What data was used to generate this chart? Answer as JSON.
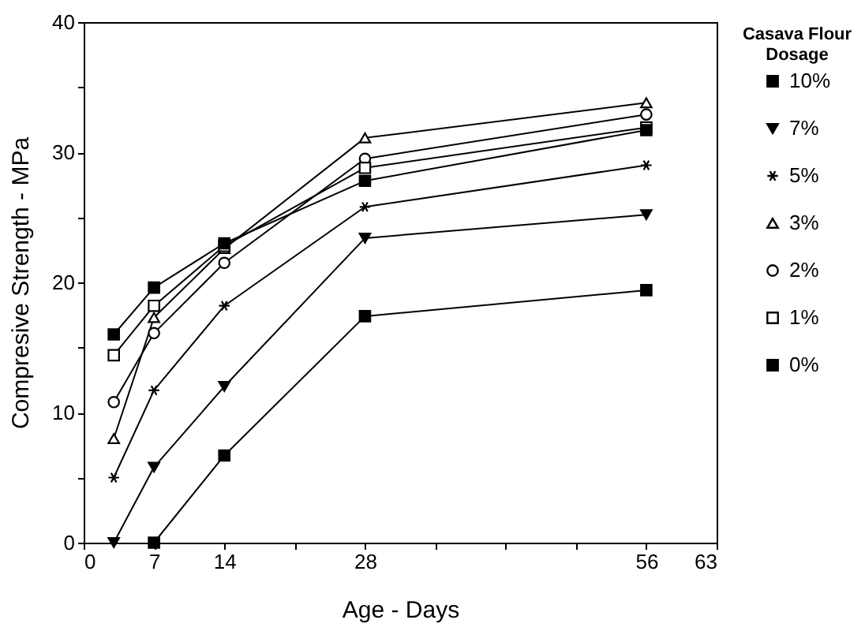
{
  "chart_data": {
    "type": "line",
    "xlabel": "Age - Days",
    "ylabel": "Compresive Strength - MPa",
    "legend_title": "Casava Flour Dosage",
    "legend": "right",
    "x": [
      3,
      7,
      14,
      28,
      56
    ],
    "series": [
      {
        "name": "10%",
        "color": "#000000",
        "marker": "square",
        "values": [
          null,
          0,
          6.7,
          17.4,
          19.4
        ]
      },
      {
        "name": "7%",
        "color": "#000000",
        "marker": "triangle-down",
        "values": [
          0,
          5.8,
          12.0,
          23.4,
          25.2
        ]
      },
      {
        "name": "5%",
        "color": "#000000",
        "marker": "cross",
        "values": [
          5.0,
          11.7,
          18.2,
          25.8,
          29.0
        ]
      },
      {
        "name": "3%",
        "color": "#ffffff",
        "marker": "triangle",
        "values": [
          8.0,
          17.3,
          22.6,
          31.1,
          33.8
        ]
      },
      {
        "name": "2%",
        "color": "#ffffff",
        "marker": "circle",
        "values": [
          10.8,
          16.1,
          21.5,
          29.5,
          32.9
        ]
      },
      {
        "name": "1%",
        "color": "#ffffff",
        "marker": "square",
        "values": [
          14.4,
          18.2,
          22.8,
          28.8,
          31.9
        ]
      },
      {
        "name": "0%",
        "color": "#000000",
        "marker": "square",
        "values": [
          16.0,
          19.6,
          23.0,
          27.8,
          31.7
        ]
      }
    ],
    "xlim": [
      0,
      63
    ],
    "xticks": [
      0,
      7,
      14,
      {
        "value": 21,
        "label": null
      },
      28,
      {
        "value": 35,
        "label": null
      },
      {
        "value": 42,
        "label": null
      },
      {
        "value": 49,
        "label": null
      },
      56,
      63
    ],
    "ylim": [
      0,
      40
    ],
    "yticks": [
      0,
      {
        "value": 5,
        "label": null
      },
      10,
      {
        "value": 15,
        "label": null
      },
      20,
      {
        "value": 25,
        "label": null
      },
      30,
      {
        "value": 35,
        "label": null
      },
      40
    ],
    "grid": false
  }
}
